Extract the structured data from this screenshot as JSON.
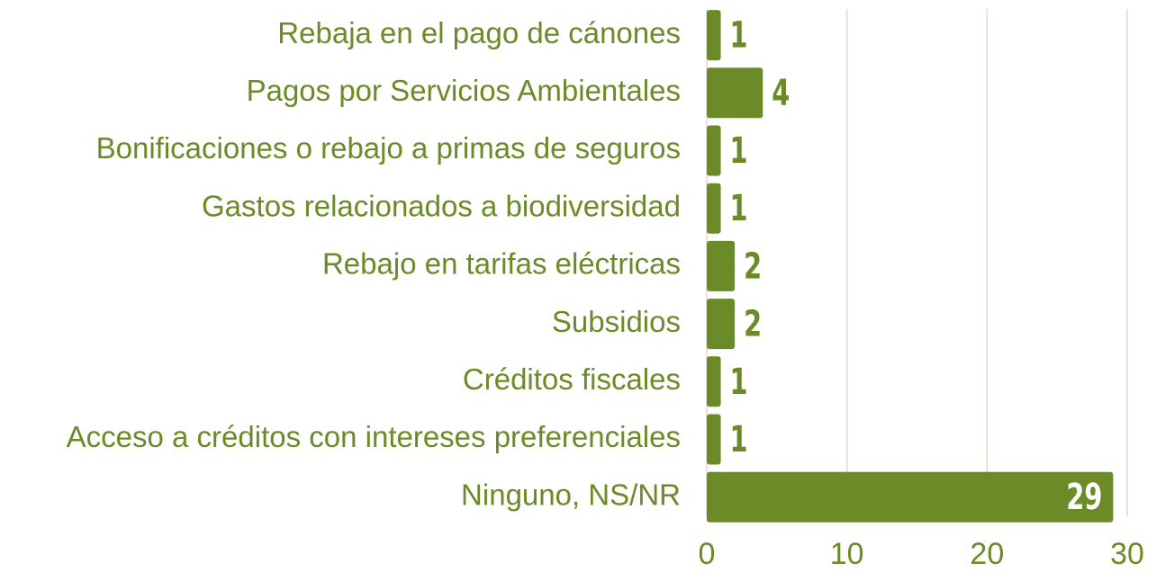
{
  "chart_data": {
    "type": "bar",
    "orientation": "horizontal",
    "categories": [
      "Rebaja en el pago de cánones",
      "Pagos por Servicios Ambientales",
      "Bonificaciones o rebajo a primas de seguros",
      "Gastos relacionados a biodiversidad",
      "Rebajo en tarifas eléctricas",
      "Subsidios",
      "Créditos fiscales",
      "Acceso a créditos con intereses preferenciales",
      "Ninguno, NS/NR"
    ],
    "values": [
      1,
      4,
      1,
      1,
      2,
      2,
      1,
      1,
      29
    ],
    "color": "#6b8a28",
    "xlim": [
      0,
      30
    ],
    "xticks": [
      0,
      10,
      20,
      30
    ],
    "grid": true
  }
}
